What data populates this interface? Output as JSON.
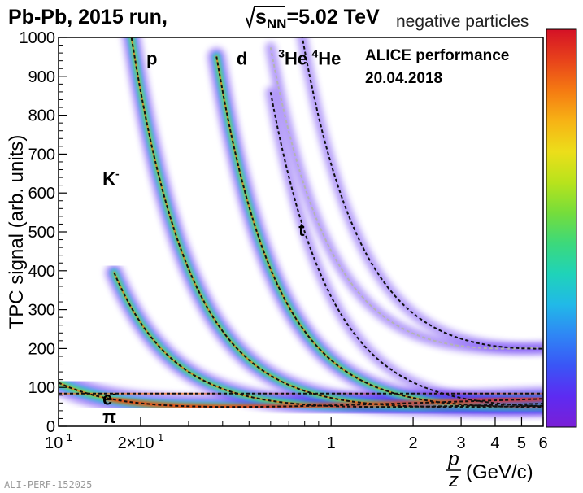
{
  "header": {
    "title_prefix": "Pb-Pb, 2015 run, ",
    "energy_s": "s",
    "energy_sub": "NN",
    "energy_value": "=5.02 TeV",
    "subtitle": "negative particles"
  },
  "performance": {
    "line1": "ALICE performance",
    "line2": "20.04.2018"
  },
  "footer_id": "ALI-PERF-152025",
  "chart_data": {
    "type": "heatmap",
    "x_scale": "log",
    "xlim": [
      0.1,
      6
    ],
    "ylim": [
      0,
      1000
    ],
    "ylabel": "TPC signal (arb. units)",
    "xlabel": {
      "numerator": "p",
      "denominator": "z",
      "unit": "(GeV/c)"
    },
    "x_ticks": [
      {
        "value": 0.1,
        "label": "10",
        "sup": "-1"
      },
      {
        "value": 0.2,
        "label": "2×10",
        "sup": "-1"
      },
      {
        "value": 1,
        "label": "1",
        "sup": ""
      },
      {
        "value": 2,
        "label": "2",
        "sup": ""
      },
      {
        "value": 3,
        "label": "3",
        "sup": ""
      },
      {
        "value": 4,
        "label": "4",
        "sup": ""
      },
      {
        "value": 5,
        "label": "5",
        "sup": ""
      },
      {
        "value": 6,
        "label": "6",
        "sup": ""
      }
    ],
    "y_ticks": [
      0,
      100,
      200,
      300,
      400,
      500,
      600,
      700,
      800,
      900,
      1000
    ],
    "species": [
      {
        "label": "π",
        "sup": "",
        "label_x": 0.145,
        "label_y": 8,
        "mass": 0.1396,
        "charge": 1,
        "mip": 50,
        "curve": [
          0.1,
          6
        ],
        "style": "black"
      },
      {
        "label": "e",
        "sup": "-",
        "label_x": 0.145,
        "label_y": 55,
        "mass": 0.000511,
        "charge": 1,
        "plateau": 84,
        "curve": [
          0.1,
          6
        ],
        "style": "black"
      },
      {
        "label": "K",
        "sup": "-",
        "label_x": 0.145,
        "label_y": 620,
        "mass": 0.4937,
        "charge": 1,
        "mip": 50,
        "curve": [
          0.16,
          6
        ],
        "style": "black"
      },
      {
        "label": "p",
        "sup": "",
        "label_x": 0.21,
        "label_y": 930,
        "mass": 0.9383,
        "charge": 1,
        "mip": 50,
        "curve": [
          0.18,
          6
        ],
        "style": "black"
      },
      {
        "label": "d",
        "sup": "",
        "label_x": 0.45,
        "label_y": 930,
        "mass": 1.8756,
        "charge": 1,
        "mip": 50,
        "curve": [
          0.38,
          6
        ],
        "style": "black"
      },
      {
        "label": "t",
        "sup": "",
        "label_x": 0.76,
        "label_y": 490,
        "mass": 2.8089,
        "charge": 1,
        "mip": 50,
        "curve": [
          0.6,
          6
        ],
        "style": "black"
      },
      {
        "label": "He",
        "sup": "3",
        "label_x": 0.64,
        "label_y": 930,
        "mass": 2.8084,
        "charge": 2,
        "mip": 50,
        "curve": [
          0.6,
          6
        ],
        "style": "grey"
      },
      {
        "label": "He",
        "sup": "4",
        "label_x": 0.85,
        "label_y": 930,
        "mass": 3.7274,
        "charge": 2,
        "mip": 50,
        "curve": [
          0.75,
          6
        ],
        "style": "black"
      }
    ],
    "colors": {
      "palette": [
        "#7a1fd6",
        "#5d2bf2",
        "#3a55f6",
        "#2f86f5",
        "#21b9e8",
        "#1fd3b9",
        "#3cd97b",
        "#75dd3b",
        "#b8e31c",
        "#ecde1a",
        "#f7b315",
        "#f57a12",
        "#e8421b",
        "#d41126"
      ],
      "curve_black": "#111111",
      "curve_grey": "#b3b3b3"
    }
  }
}
